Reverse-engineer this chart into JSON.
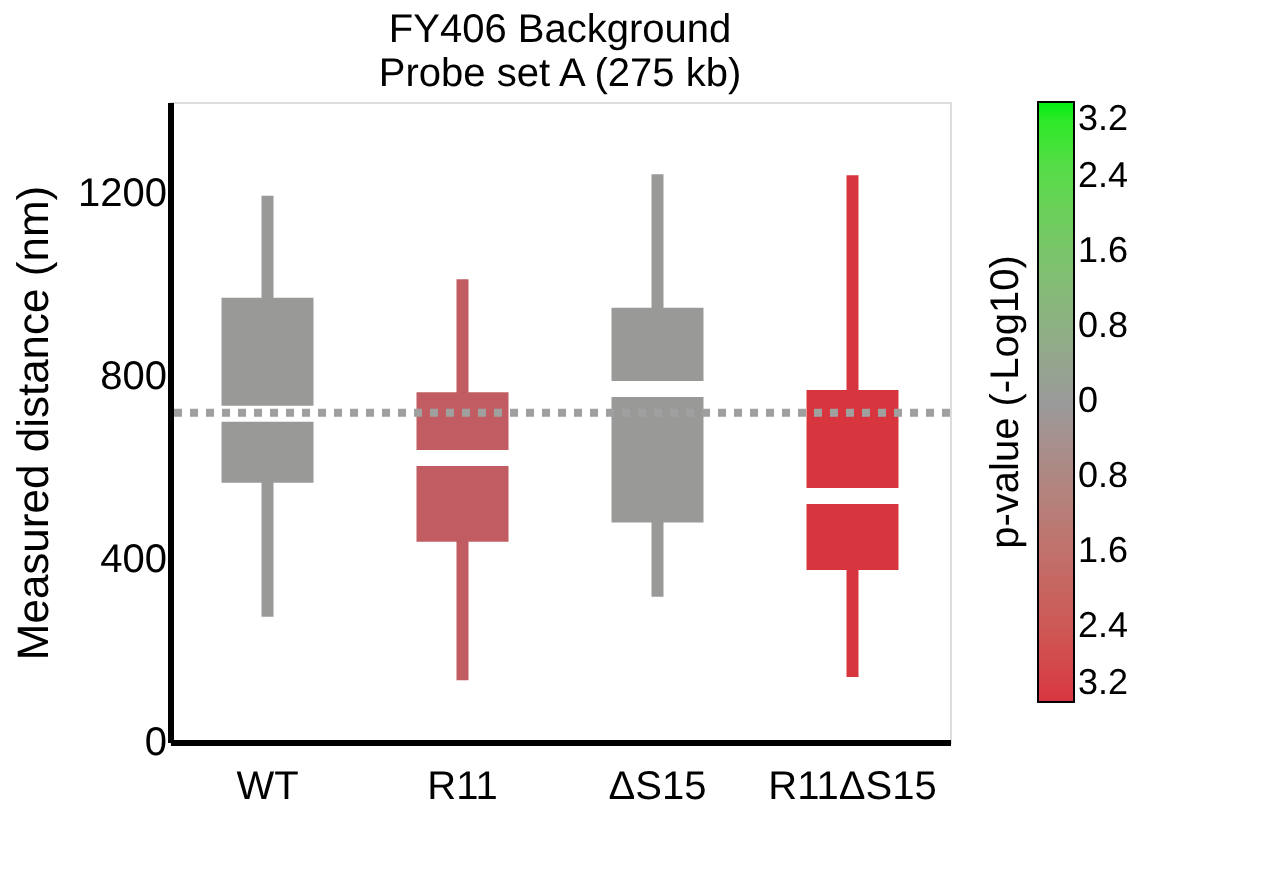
{
  "chart_data": {
    "type": "box",
    "title": [
      "FY406 Background",
      "Probe set A (275 kb)"
    ],
    "ylabel": "Measured distance (nm)",
    "clabel": "p-value (-Log10)",
    "categories": [
      "WT",
      "R11",
      "ΔS15",
      "R11ΔS15"
    ],
    "boxes": [
      {
        "low": 274,
        "q1": 567,
        "median": 718,
        "q3": 972,
        "high": 1195
      },
      {
        "low": 135,
        "q1": 438,
        "median": 621,
        "q3": 765,
        "high": 1012
      },
      {
        "low": 318,
        "q1": 480,
        "median": 772,
        "q3": 950,
        "high": 1242
      },
      {
        "low": 142,
        "q1": 376,
        "median": 538,
        "q3": 770,
        "high": 1240
      }
    ],
    "colors": [
      "#999a98",
      "#c05c62",
      "#999a98",
      "#d8363f"
    ],
    "ylim": [
      0,
      1400
    ],
    "yticks": [
      0,
      400,
      800,
      1200
    ],
    "clim": [
      -3.2,
      3.2
    ],
    "cticks": [
      {
        "value": -3.2,
        "label": "3.2"
      },
      {
        "value": -2.4,
        "label": "2.4"
      },
      {
        "value": -1.6,
        "label": "1.6"
      },
      {
        "value": -0.8,
        "label": "0.8"
      },
      0,
      {
        "value": 0.8,
        "label": "0.8"
      },
      {
        "value": 1.6,
        "label": "1.6"
      },
      {
        "value": 2.4,
        "label": "2.4"
      },
      {
        "value": 3.2,
        "label": "3.2"
      }
    ],
    "ref_lines": [
      {
        "axis": "y",
        "value": 720,
        "color": "#a0a0a0",
        "line_style": "dotted"
      }
    ],
    "grid": false
  }
}
